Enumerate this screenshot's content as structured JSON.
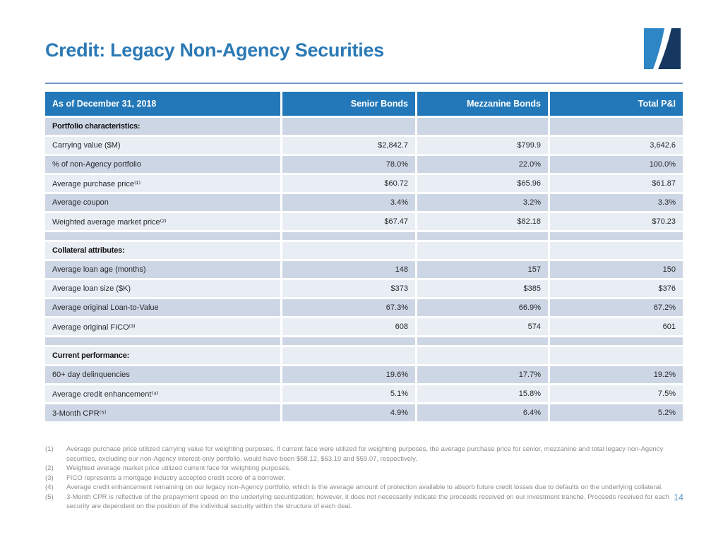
{
  "header": {
    "title": "Credit: Legacy Non-Agency Securities"
  },
  "logo": {
    "name": "two-tone-swoosh-logo",
    "light_blue": "#2E86C4",
    "navy": "#16375F"
  },
  "table": {
    "columns": [
      "As of December 31, 2018",
      "Senior Bonds",
      "Mezzanine Bonds",
      "Total P&I"
    ],
    "rows": [
      {
        "type": "section",
        "label": "Portfolio characteristics:"
      },
      {
        "type": "data",
        "label": "Carrying value ($M)",
        "senior": "$2,842.7",
        "mezzanine": "$799.9",
        "total": "3,642.6"
      },
      {
        "type": "data",
        "label": "% of non-Agency portfolio",
        "senior": "78.0%",
        "mezzanine": "22.0%",
        "total": "100.0%"
      },
      {
        "type": "data",
        "label": "Average purchase price⁽¹⁾",
        "senior": "$60.72",
        "mezzanine": "$65.96",
        "total": "$61.87"
      },
      {
        "type": "data",
        "label": "Average coupon",
        "senior": "3.4%",
        "mezzanine": "3.2%",
        "total": "3.3%"
      },
      {
        "type": "data",
        "label": "Weighted average market price⁽²⁾",
        "senior": "$67.47",
        "mezzanine": "$82.18",
        "total": "$70.23"
      },
      {
        "type": "spacer"
      },
      {
        "type": "section",
        "label": "Collateral attributes:"
      },
      {
        "type": "data",
        "label": "Average loan age (months)",
        "senior": "148",
        "mezzanine": "157",
        "total": "150"
      },
      {
        "type": "data",
        "label": "Average loan size ($K)",
        "senior": "$373",
        "mezzanine": "$385",
        "total": "$376"
      },
      {
        "type": "data",
        "label": "Average original Loan-to-Value",
        "senior": "67.3%",
        "mezzanine": "66.9%",
        "total": "67.2%"
      },
      {
        "type": "data",
        "label": "Average original FICO⁽³⁾",
        "senior": "608",
        "mezzanine": "574",
        "total": "601"
      },
      {
        "type": "spacer"
      },
      {
        "type": "section",
        "label": "Current performance:"
      },
      {
        "type": "data",
        "label": "60+ day delinquencies",
        "senior": "19.6%",
        "mezzanine": "17.7%",
        "total": "19.2%"
      },
      {
        "type": "data",
        "label": "Average credit enhancement⁽⁴⁾",
        "senior": "5.1%",
        "mezzanine": "15.8%",
        "total": "7.5%"
      },
      {
        "type": "data",
        "label": "3-Month CPR⁽⁵⁾",
        "senior": "4.9%",
        "mezzanine": "6.4%",
        "total": "5.2%"
      }
    ]
  },
  "footnotes": [
    {
      "num": "(1)",
      "text": "Average purchase price utilized carrying value for weighting purposes. If current face were utilized for weighting purposes, the average purchase price for senior, mezzanine and total legacy non-Agency securities, excluding our non-Agency interest-only portfolio, would have been $58.12, $63.19 and $59.07, respectively."
    },
    {
      "num": "(2)",
      "text": "Weighted average market price utilized current face for weighting purposes."
    },
    {
      "num": "(3)",
      "text": "FICO represents a mortgage industry accepted credit score of a borrower."
    },
    {
      "num": "(4)",
      "text": "Average credit enhancement remaining on our legacy non-Agency portfolio, which is the average amount of protection available to absorb future credit losses due to defaults on the underlying collateral."
    },
    {
      "num": "(5)",
      "text": "3-Month CPR is reflective of the prepayment speed on the underlying securitization; however, it does not necessarily indicate the proceeds received on our investment tranche. Proceeds received for each security are dependent on the position of the individual security within the structure of each deal."
    }
  ],
  "footer": {
    "page_number": "14"
  },
  "colors": {
    "title_blue": "#2B79B5",
    "divider_blue": "#6D98C8",
    "table_header_bg": "#2278B8",
    "row_dark": "#CDD6E4",
    "row_light": "#E9EDF4",
    "footnote_gray": "#898C90",
    "page_number_blue": "#659CC8"
  }
}
